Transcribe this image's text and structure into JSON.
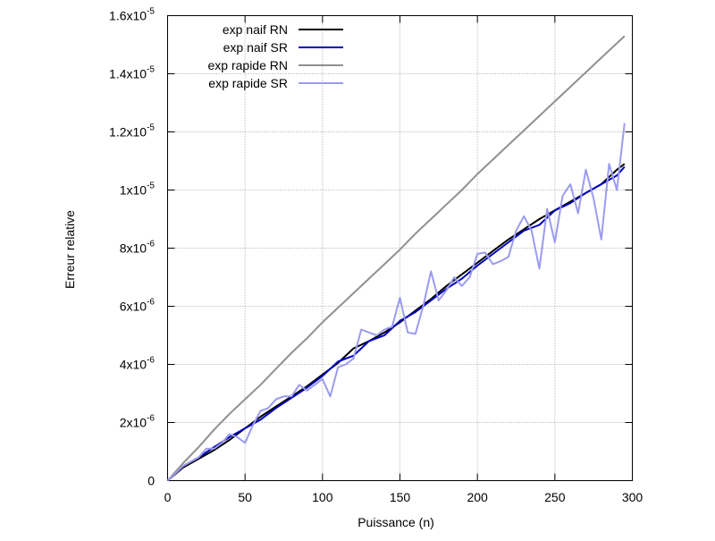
{
  "chart_data": {
    "type": "line",
    "title": "",
    "xlabel": "Puissance (n)",
    "ylabel": "Erreur relative",
    "xlim": [
      0,
      300
    ],
    "ylim": [
      0,
      1.6e-05
    ],
    "grid": true,
    "legend_position": "top-left",
    "x_ticks": [
      {
        "value": 0,
        "label": "0"
      },
      {
        "value": 50,
        "label": "50"
      },
      {
        "value": 100,
        "label": "100"
      },
      {
        "value": 150,
        "label": "150"
      },
      {
        "value": 200,
        "label": "200"
      },
      {
        "value": 250,
        "label": "250"
      },
      {
        "value": 300,
        "label": "300"
      }
    ],
    "y_ticks": [
      {
        "value": 0,
        "mantissa": "0",
        "exponent": ""
      },
      {
        "value": 2e-06,
        "mantissa": "2x10",
        "exponent": "-6"
      },
      {
        "value": 4e-06,
        "mantissa": "4x10",
        "exponent": "-6"
      },
      {
        "value": 6e-06,
        "mantissa": "6x10",
        "exponent": "-6"
      },
      {
        "value": 8e-06,
        "mantissa": "8x10",
        "exponent": "-6"
      },
      {
        "value": 1e-05,
        "mantissa": "1x10",
        "exponent": "-5"
      },
      {
        "value": 1.2e-05,
        "mantissa": "1.2x10",
        "exponent": "-5"
      },
      {
        "value": 1.4e-05,
        "mantissa": "1.4x10",
        "exponent": "-5"
      },
      {
        "value": 1.6e-05,
        "mantissa": "1.6x10",
        "exponent": "-5"
      }
    ],
    "series": [
      {
        "name": "exp naif RN",
        "color": "#000000",
        "x": [
          0,
          10,
          20,
          30,
          40,
          50,
          60,
          70,
          80,
          90,
          100,
          110,
          120,
          130,
          140,
          150,
          160,
          170,
          180,
          190,
          200,
          210,
          220,
          230,
          240,
          250,
          260,
          270,
          280,
          290,
          295
        ],
        "y": [
          0,
          4.5e-07,
          7.5e-07,
          1.05e-06,
          1.4e-06,
          1.8e-06,
          2.2e-06,
          2.55e-06,
          2.9e-06,
          3.25e-06,
          3.65e-06,
          4.05e-06,
          4.55e-06,
          4.8e-06,
          5.1e-06,
          5.45e-06,
          5.85e-06,
          6.25e-06,
          6.7e-06,
          7.1e-06,
          7.5e-06,
          7.9e-06,
          8.3e-06,
          8.65e-06,
          9e-06,
          9.3e-06,
          9.6e-06,
          9.9e-06,
          1.02e-05,
          1.07e-05,
          1.09e-05
        ]
      },
      {
        "name": "exp naif SR",
        "color": "#0000c0",
        "x": [
          0,
          10,
          20,
          30,
          40,
          50,
          60,
          70,
          80,
          90,
          100,
          110,
          120,
          130,
          140,
          150,
          160,
          170,
          180,
          190,
          200,
          210,
          220,
          230,
          240,
          250,
          260,
          270,
          280,
          290,
          295
        ],
        "y": [
          0,
          5e-07,
          8e-07,
          1.15e-06,
          1.5e-06,
          1.8e-06,
          2.1e-06,
          2.5e-06,
          2.85e-06,
          3.2e-06,
          3.6e-06,
          4.1e-06,
          4.3e-06,
          4.8e-06,
          5e-06,
          5.5e-06,
          5.8e-06,
          6.2e-06,
          6.6e-06,
          6.95e-06,
          7.4e-06,
          7.8e-06,
          8.2e-06,
          8.6e-06,
          8.8e-06,
          9.3e-06,
          9.55e-06,
          9.9e-06,
          1.02e-05,
          1.05e-05,
          1.08e-05
        ]
      },
      {
        "name": "exp rapide RN",
        "color": "#909090",
        "x": [
          0,
          10,
          20,
          30,
          40,
          50,
          60,
          70,
          80,
          90,
          100,
          110,
          120,
          130,
          140,
          150,
          160,
          170,
          180,
          190,
          200,
          210,
          220,
          230,
          240,
          250,
          260,
          270,
          280,
          290,
          295
        ],
        "y": [
          0,
          6e-07,
          1.15e-06,
          1.75e-06,
          2.3e-06,
          2.8e-06,
          3.3e-06,
          3.85e-06,
          4.4e-06,
          4.9e-06,
          5.45e-06,
          5.95e-06,
          6.45e-06,
          6.95e-06,
          7.45e-06,
          7.95e-06,
          8.5e-06,
          9e-06,
          9.5e-06,
          1e-05,
          1.055e-05,
          1.105e-05,
          1.155e-05,
          1.205e-05,
          1.255e-05,
          1.305e-05,
          1.355e-05,
          1.405e-05,
          1.455e-05,
          1.505e-05,
          1.53e-05
        ]
      },
      {
        "name": "exp rapide SR",
        "color": "#9b9bf0",
        "x": [
          0,
          10,
          20,
          25,
          30,
          35,
          40,
          45,
          50,
          55,
          60,
          65,
          70,
          75,
          80,
          85,
          90,
          95,
          100,
          105,
          110,
          115,
          120,
          125,
          130,
          135,
          140,
          145,
          150,
          155,
          160,
          165,
          170,
          175,
          180,
          185,
          190,
          195,
          200,
          205,
          210,
          215,
          220,
          225,
          230,
          235,
          240,
          245,
          250,
          255,
          260,
          265,
          270,
          275,
          280,
          285,
          290,
          295
        ],
        "y": [
          0,
          5e-07,
          8e-07,
          1.1e-06,
          1.1e-06,
          1.3e-06,
          1.6e-06,
          1.5e-06,
          1.3e-06,
          1.9e-06,
          2.4e-06,
          2.5e-06,
          2.8e-06,
          2.9e-06,
          2.9e-06,
          3.3e-06,
          3.1e-06,
          3.3e-06,
          3.5e-06,
          2.9e-06,
          3.9e-06,
          4e-06,
          4.2e-06,
          5.2e-06,
          5.1e-06,
          5e-06,
          5.2e-06,
          5.3e-06,
          6.3e-06,
          5.1e-06,
          5.05e-06,
          6e-06,
          7.2e-06,
          6.2e-06,
          6.55e-06,
          7e-06,
          6.7e-06,
          7e-06,
          7.8e-06,
          7.85e-06,
          7.45e-06,
          7.55e-06,
          7.7e-06,
          8.6e-06,
          9.1e-06,
          8.6e-06,
          7.3e-06,
          9.35e-06,
          8.2e-06,
          9.8e-06,
          1.02e-05,
          9.2e-06,
          1.07e-05,
          9.7e-06,
          8.3e-06,
          1.09e-05,
          1e-05,
          1.23e-05
        ]
      }
    ]
  }
}
